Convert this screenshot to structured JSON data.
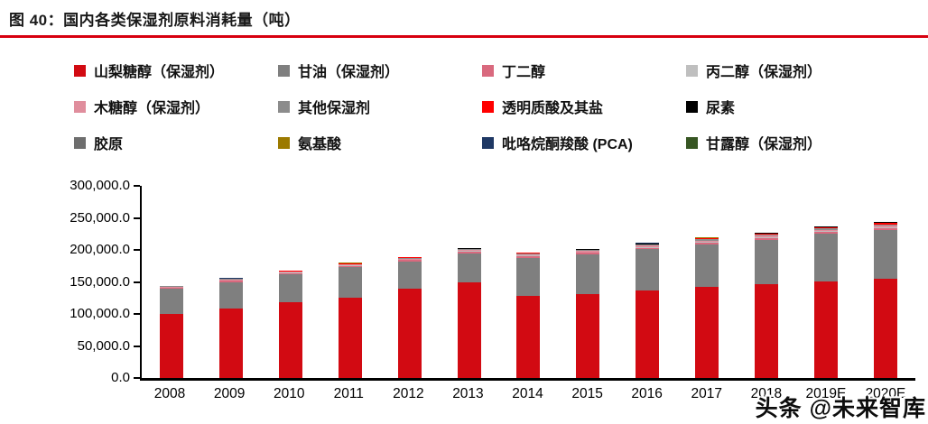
{
  "header": {
    "title": "图 40：国内各类保湿剂原料消耗量（吨）",
    "accent_color": "#d7000f"
  },
  "watermark": "头条 @未来智库",
  "chart_data": {
    "type": "bar",
    "subtype": "stacked",
    "title": "国内各类保湿剂原料消耗量（吨）",
    "unit": "吨",
    "grid": false,
    "legend_position": "top",
    "categories": [
      "2008",
      "2009",
      "2010",
      "2011",
      "2012",
      "2013",
      "2014",
      "2015",
      "2016",
      "2017",
      "2018",
      "2019E",
      "2020E"
    ],
    "y_axis": {
      "min": 0,
      "max": 300000,
      "step": 50000,
      "tick_labels": [
        "0.0",
        "50,000.0",
        "100,000.0",
        "150,000.0",
        "200,000.0",
        "250,000.0",
        "300,000.0"
      ]
    },
    "series": [
      {
        "name": "山梨糖醇（保湿剂）",
        "color": "#d20a12",
        "values": [
          100000,
          109000,
          118000,
          126000,
          139000,
          150000,
          128000,
          131000,
          137000,
          142000,
          146000,
          151000,
          155000
        ]
      },
      {
        "name": "甘油（保湿剂）",
        "color": "#7f7f7f",
        "values": [
          39000,
          41000,
          44000,
          47000,
          43000,
          45000,
          60000,
          62000,
          64000,
          67000,
          70000,
          74000,
          76000
        ]
      },
      {
        "name": "丁二醇",
        "color": "#d9697e",
        "values": [
          1500,
          1600,
          1700,
          1800,
          1900,
          2100,
          2200,
          2300,
          2400,
          2500,
          2700,
          2900,
          3100
        ]
      },
      {
        "name": "丙二醇（保湿剂）",
        "color": "#bfbfbf",
        "values": [
          600,
          650,
          700,
          750,
          800,
          850,
          900,
          950,
          1000,
          1050,
          1100,
          1200,
          1300
        ]
      },
      {
        "name": "木糖醇（保湿剂）",
        "color": "#e08e9d",
        "values": [
          1200,
          1300,
          1400,
          1500,
          1600,
          1700,
          1800,
          1900,
          2000,
          2100,
          2200,
          2400,
          2600
        ]
      },
      {
        "name": "其他保湿剂",
        "color": "#8c8c8c",
        "values": [
          800,
          900,
          1000,
          1100,
          1200,
          1300,
          1400,
          1500,
          1600,
          1700,
          1800,
          1900,
          2000
        ]
      },
      {
        "name": "透明质酸及其盐",
        "color": "#ff0000",
        "values": [
          400,
          450,
          500,
          600,
          700,
          800,
          900,
          1000,
          1200,
          1400,
          1700,
          2000,
          2400
        ]
      },
      {
        "name": "尿素",
        "color": "#000000",
        "values": [
          500,
          550,
          600,
          650,
          700,
          750,
          800,
          850,
          900,
          950,
          1000,
          1100,
          1200
        ]
      },
      {
        "name": "胶原",
        "color": "#6e6e6e",
        "values": [
          200,
          220,
          240,
          260,
          280,
          300,
          320,
          340,
          360,
          380,
          400,
          420,
          440
        ]
      },
      {
        "name": "氨基酸",
        "color": "#9c7a00",
        "values": [
          100,
          110,
          120,
          130,
          140,
          150,
          160,
          170,
          180,
          190,
          200,
          210,
          220
        ]
      },
      {
        "name": "吡咯烷酮羧酸 (PCA)",
        "color": "#1f3864",
        "values": [
          50,
          55,
          60,
          65,
          70,
          75,
          80,
          85,
          90,
          95,
          100,
          105,
          110
        ]
      },
      {
        "name": "甘露醇（保湿剂）",
        "color": "#375623",
        "values": [
          50,
          55,
          60,
          65,
          70,
          75,
          80,
          85,
          90,
          95,
          100,
          105,
          110
        ]
      }
    ]
  }
}
